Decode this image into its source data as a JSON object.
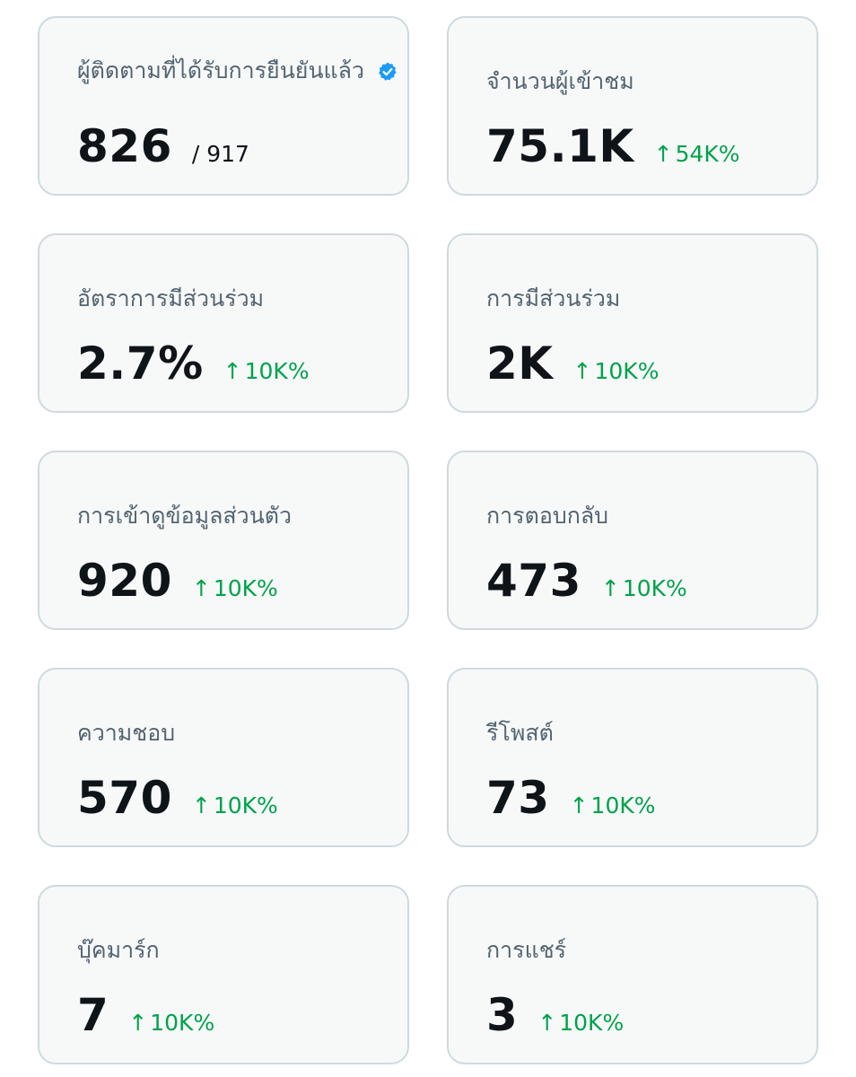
{
  "colors": {
    "card_background": "#f7f9f9",
    "card_border": "#cfd9de",
    "label_text": "#536471",
    "value_text": "#0f1419",
    "positive_change": "#00a24b",
    "verified_badge": "#1d9bf0"
  },
  "icons": {
    "change_arrow": "up-arrow-icon",
    "verified": "verified-badge-icon"
  },
  "stats": {
    "verified_followers": {
      "label": "ผู้ติดตามที่ได้รับการยืนยันแล้ว",
      "value": "826",
      "total": "/ 917"
    },
    "impressions": {
      "label": "จำนวนผู้เข้าชม",
      "value": "75.1K",
      "arrow": "↑",
      "change": "54K%"
    },
    "engagement_rate": {
      "label": "อัตราการมีส่วนร่วม",
      "value": "2.7%",
      "arrow": "↑",
      "change": "10K%"
    },
    "engagements": {
      "label": "การมีส่วนร่วม",
      "value": "2K",
      "arrow": "↑",
      "change": "10K%"
    },
    "profile_visits": {
      "label": "การเข้าดูข้อมูลส่วนตัว",
      "value": "920",
      "arrow": "↑",
      "change": "10K%"
    },
    "replies": {
      "label": "การตอบกลับ",
      "value": "473",
      "arrow": "↑",
      "change": "10K%"
    },
    "likes": {
      "label": "ความชอบ",
      "value": "570",
      "arrow": "↑",
      "change": "10K%"
    },
    "reposts": {
      "label": "รีโพสต์",
      "value": "73",
      "arrow": "↑",
      "change": "10K%"
    },
    "bookmarks": {
      "label": "บุ๊คมาร์ก",
      "value": "7",
      "arrow": "↑",
      "change": "10K%"
    },
    "shares": {
      "label": "การแชร์",
      "value": "3",
      "arrow": "↑",
      "change": "10K%"
    }
  }
}
